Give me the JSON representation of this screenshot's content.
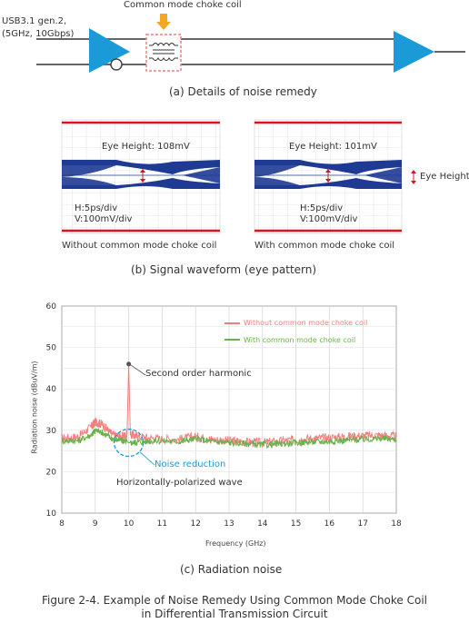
{
  "circuit": {
    "usb_line1": "USB3.1  gen.2,",
    "usb_line2": "(5GHz, 10Gbps)",
    "choke_label": "Common mode choke coil",
    "caption": "(a) Details of noise remedy"
  },
  "eye": {
    "left": {
      "height_label": "Eye Height: 108mV",
      "h_scale": "H:5ps/div",
      "v_scale": "V:100mV/div",
      "caption": "Without common mode choke coil"
    },
    "right": {
      "height_label": "Eye Height: 101mV",
      "h_scale": "H:5ps/div",
      "v_scale": "V:100mV/div",
      "caption": "With common mode choke coil"
    },
    "legend": "Eye Height",
    "caption": "(b) Signal waveform (eye pattern)"
  },
  "chart_data": {
    "type": "line",
    "xlabel": "Frequency (GHz)",
    "ylabel": "Radiation noise (dBuV/m)",
    "xlim": [
      8,
      18
    ],
    "ylim": [
      10,
      60
    ],
    "xticks": [
      8,
      9,
      10,
      11,
      12,
      13,
      14,
      15,
      16,
      17,
      18
    ],
    "yticks": [
      10,
      20,
      30,
      40,
      50,
      60
    ],
    "grid": true,
    "legend_position": "top-right",
    "series": [
      {
        "name": "Without common mode choke coil",
        "color": "#f08080",
        "x": [
          8,
          8.5,
          8.9,
          9.0,
          9.2,
          9.5,
          9.8,
          9.95,
          10.0,
          10.05,
          10.3,
          10.8,
          11.5,
          12.0,
          12.5,
          13,
          13.5,
          14,
          14.5,
          15,
          15.5,
          16,
          16.5,
          17,
          17.5,
          18
        ],
        "values": [
          28,
          28.5,
          31,
          32,
          31.5,
          29,
          28.5,
          29,
          46,
          29,
          28.5,
          28,
          27.8,
          28.5,
          27.8,
          27.5,
          27.2,
          27,
          27.3,
          27.8,
          28,
          28.2,
          28.5,
          28.7,
          28.8,
          28.5
        ]
      },
      {
        "name": "With common mode choke coil",
        "color": "#6ab04c",
        "x": [
          8,
          8.5,
          8.9,
          9.0,
          9.2,
          9.5,
          9.8,
          9.95,
          10.0,
          10.05,
          10.3,
          10.8,
          11.5,
          12.0,
          12.5,
          13,
          13.5,
          14,
          14.5,
          15,
          15.5,
          16,
          16.5,
          17,
          17.5,
          18
        ],
        "values": [
          27.5,
          27.5,
          29,
          30,
          29.5,
          28,
          27.5,
          27.2,
          27.0,
          27.0,
          27.2,
          27.5,
          27.3,
          28,
          27.3,
          27,
          26.8,
          26.5,
          26.7,
          27,
          27.2,
          27.3,
          27.6,
          27.8,
          28,
          27.8
        ]
      }
    ],
    "annotations": {
      "harmonic": "Second order harmonic",
      "reduction": "Noise reduction",
      "polarization": "Horizontally-polarized wave"
    },
    "caption": "(c) Radiation noise"
  },
  "figure_title_line1": "Figure 2-4. Example of Noise Remedy Using Common Mode Choke Coil",
  "figure_title_line2": "in Differential Transmission Circuit",
  "colors": {
    "trace": "#1f4e9e",
    "amp": "#1a9bd7",
    "choke_box": "#f08080",
    "arrow": "#f5a623",
    "limit_line": "#d9141c",
    "reduction": "#1a9bd7"
  }
}
